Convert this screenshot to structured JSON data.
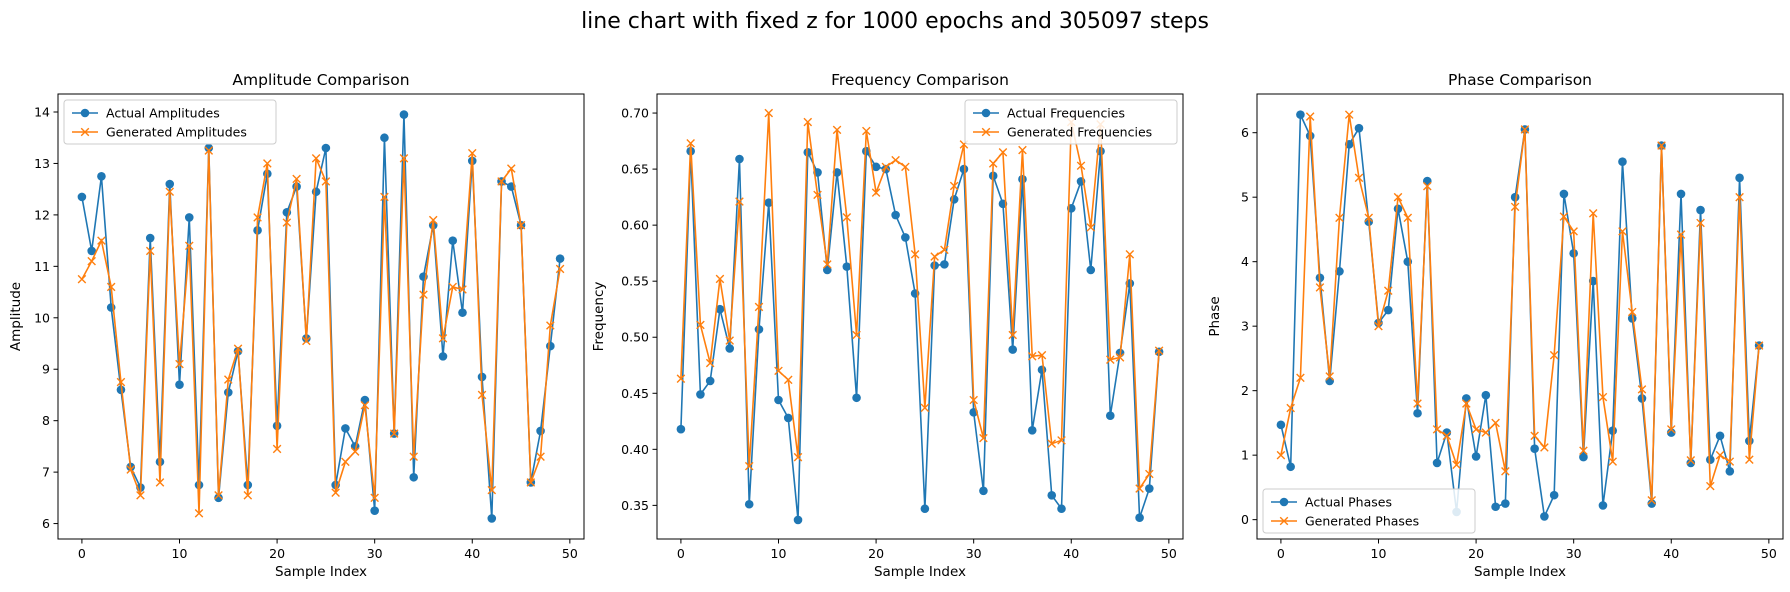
{
  "figure": {
    "suptitle": "line chart with fixed z for 1000 epochs and 305097 steps"
  },
  "colors": {
    "actual": "#1f77b4",
    "generated": "#ff7f0e"
  },
  "chart_data": [
    {
      "type": "line",
      "title": "Amplitude Comparison",
      "xlabel": "Sample Index",
      "ylabel": "Amplitude",
      "xlim": [
        -2.45,
        51.45
      ],
      "ylim": [
        5.7,
        14.35
      ],
      "xticks": [
        0,
        10,
        20,
        30,
        40,
        50
      ],
      "yticks": [
        6,
        7,
        8,
        9,
        10,
        11,
        12,
        13,
        14
      ],
      "legend_position": "upper-left",
      "grid": false,
      "x": [
        0,
        1,
        2,
        3,
        4,
        5,
        6,
        7,
        8,
        9,
        10,
        11,
        12,
        13,
        14,
        15,
        16,
        17,
        18,
        19,
        20,
        21,
        22,
        23,
        24,
        25,
        26,
        27,
        28,
        29,
        30,
        31,
        32,
        33,
        34,
        35,
        36,
        37,
        38,
        39,
        40,
        41,
        42,
        43,
        44,
        45,
        46,
        47,
        48,
        49
      ],
      "series": [
        {
          "name": "Actual Amplitudes",
          "marker": "o",
          "values": [
            12.35,
            11.3,
            12.75,
            10.2,
            8.6,
            7.1,
            6.7,
            11.55,
            7.2,
            12.6,
            8.7,
            11.95,
            6.75,
            13.3,
            6.5,
            8.55,
            9.35,
            6.75,
            11.7,
            12.8,
            7.9,
            12.05,
            12.55,
            9.6,
            12.45,
            13.3,
            6.75,
            7.85,
            7.5,
            8.4,
            6.25,
            13.5,
            7.75,
            13.95,
            6.9,
            10.8,
            11.8,
            9.25,
            11.5,
            10.1,
            13.05,
            8.85,
            6.1,
            12.65,
            12.55,
            11.8,
            6.8,
            7.8,
            9.45,
            11.15
          ]
        },
        {
          "name": "Generated Amplitudes",
          "marker": "x",
          "values": [
            10.75,
            11.1,
            11.5,
            10.6,
            8.75,
            7.05,
            6.55,
            11.3,
            6.8,
            12.45,
            9.1,
            11.4,
            6.2,
            13.25,
            6.55,
            8.8,
            9.4,
            6.55,
            11.95,
            13.0,
            7.45,
            11.85,
            12.7,
            9.55,
            13.1,
            12.65,
            6.6,
            7.2,
            7.4,
            8.3,
            6.5,
            12.35,
            7.75,
            13.1,
            7.3,
            10.45,
            11.9,
            9.6,
            10.6,
            10.55,
            13.2,
            8.5,
            6.65,
            12.65,
            12.9,
            11.8,
            6.8,
            7.3,
            9.85,
            10.95
          ]
        }
      ]
    },
    {
      "type": "line",
      "title": "Frequency Comparison",
      "xlabel": "Sample Index",
      "ylabel": "Frequency",
      "xlim": [
        -2.45,
        51.45
      ],
      "ylim": [
        0.32,
        0.717
      ],
      "xticks": [
        0,
        10,
        20,
        30,
        40,
        50
      ],
      "yticks": [
        0.35,
        0.4,
        0.45,
        0.5,
        0.55,
        0.6,
        0.65,
        0.7
      ],
      "ytick_labels": [
        "0.35",
        "0.40",
        "0.45",
        "0.50",
        "0.55",
        "0.60",
        "0.65",
        "0.70"
      ],
      "legend_position": "upper-right",
      "grid": false,
      "x": [
        0,
        1,
        2,
        3,
        4,
        5,
        6,
        7,
        8,
        9,
        10,
        11,
        12,
        13,
        14,
        15,
        16,
        17,
        18,
        19,
        20,
        21,
        22,
        23,
        24,
        25,
        26,
        27,
        28,
        29,
        30,
        31,
        32,
        33,
        34,
        35,
        36,
        37,
        38,
        39,
        40,
        41,
        42,
        43,
        44,
        45,
        46,
        47,
        48,
        49
      ],
      "series": [
        {
          "name": "Actual Frequencies",
          "marker": "o",
          "values": [
            0.418,
            0.666,
            0.449,
            0.461,
            0.525,
            0.49,
            0.659,
            0.351,
            0.507,
            0.62,
            0.444,
            0.428,
            0.337,
            0.665,
            0.647,
            0.56,
            0.647,
            0.563,
            0.446,
            0.666,
            0.652,
            0.65,
            0.609,
            0.589,
            0.539,
            0.347,
            0.564,
            0.565,
            0.623,
            0.65,
            0.433,
            0.363,
            0.644,
            0.619,
            0.489,
            0.641,
            0.417,
            0.471,
            0.359,
            0.347,
            0.615,
            0.639,
            0.56,
            0.666,
            0.43,
            0.486,
            0.548,
            0.339,
            0.365,
            0.487
          ]
        },
        {
          "name": "Generated Frequencies",
          "marker": "x",
          "values": [
            0.463,
            0.673,
            0.511,
            0.477,
            0.552,
            0.497,
            0.621,
            0.385,
            0.527,
            0.7,
            0.47,
            0.462,
            0.393,
            0.692,
            0.627,
            0.565,
            0.685,
            0.607,
            0.502,
            0.684,
            0.629,
            0.652,
            0.658,
            0.652,
            0.574,
            0.437,
            0.572,
            0.578,
            0.635,
            0.672,
            0.444,
            0.41,
            0.655,
            0.665,
            0.502,
            0.667,
            0.483,
            0.484,
            0.405,
            0.408,
            0.692,
            0.653,
            0.598,
            0.69,
            0.48,
            0.482,
            0.574,
            0.365,
            0.378,
            0.488
          ]
        }
      ]
    },
    {
      "type": "line",
      "title": "Phase Comparison",
      "xlabel": "Sample Index",
      "ylabel": "Phase",
      "xlim": [
        -2.45,
        51.45
      ],
      "ylim": [
        -0.3,
        6.6
      ],
      "xticks": [
        0,
        10,
        20,
        30,
        40,
        50
      ],
      "yticks": [
        0,
        1,
        2,
        3,
        4,
        5,
        6
      ],
      "legend_position": "lower-left",
      "grid": false,
      "x": [
        0,
        1,
        2,
        3,
        4,
        5,
        6,
        7,
        8,
        9,
        10,
        11,
        12,
        13,
        14,
        15,
        16,
        17,
        18,
        19,
        20,
        21,
        22,
        23,
        24,
        25,
        26,
        27,
        28,
        29,
        30,
        31,
        32,
        33,
        34,
        35,
        36,
        37,
        38,
        39,
        40,
        41,
        42,
        43,
        44,
        45,
        46,
        47,
        48,
        49
      ],
      "series": [
        {
          "name": "Actual Phases",
          "marker": "o",
          "values": [
            1.47,
            0.82,
            6.28,
            5.95,
            3.75,
            2.15,
            3.85,
            5.82,
            6.07,
            4.62,
            3.05,
            3.25,
            4.82,
            4.0,
            1.65,
            5.25,
            0.88,
            1.35,
            0.12,
            1.88,
            0.98,
            1.93,
            0.2,
            0.25,
            5.0,
            6.05,
            1.1,
            0.05,
            0.38,
            5.05,
            4.13,
            0.97,
            3.7,
            0.22,
            1.38,
            5.55,
            3.12,
            1.88,
            0.25,
            5.8,
            1.35,
            5.05,
            0.88,
            4.8,
            0.93,
            1.3,
            0.75,
            5.3,
            1.22,
            2.7
          ]
        },
        {
          "name": "Generated Phases",
          "marker": "x",
          "values": [
            1.0,
            1.73,
            2.2,
            6.25,
            3.6,
            2.22,
            4.68,
            6.28,
            5.3,
            4.68,
            3.0,
            3.55,
            5.0,
            4.68,
            1.8,
            5.17,
            1.4,
            1.3,
            0.85,
            1.8,
            1.4,
            1.35,
            1.5,
            0.75,
            4.85,
            6.05,
            1.3,
            1.12,
            2.55,
            4.7,
            4.47,
            1.07,
            4.75,
            1.9,
            0.9,
            4.47,
            3.22,
            2.02,
            0.3,
            5.8,
            1.4,
            4.42,
            0.92,
            4.6,
            0.52,
            1.0,
            0.9,
            5.0,
            0.93,
            2.7
          ]
        }
      ]
    }
  ]
}
